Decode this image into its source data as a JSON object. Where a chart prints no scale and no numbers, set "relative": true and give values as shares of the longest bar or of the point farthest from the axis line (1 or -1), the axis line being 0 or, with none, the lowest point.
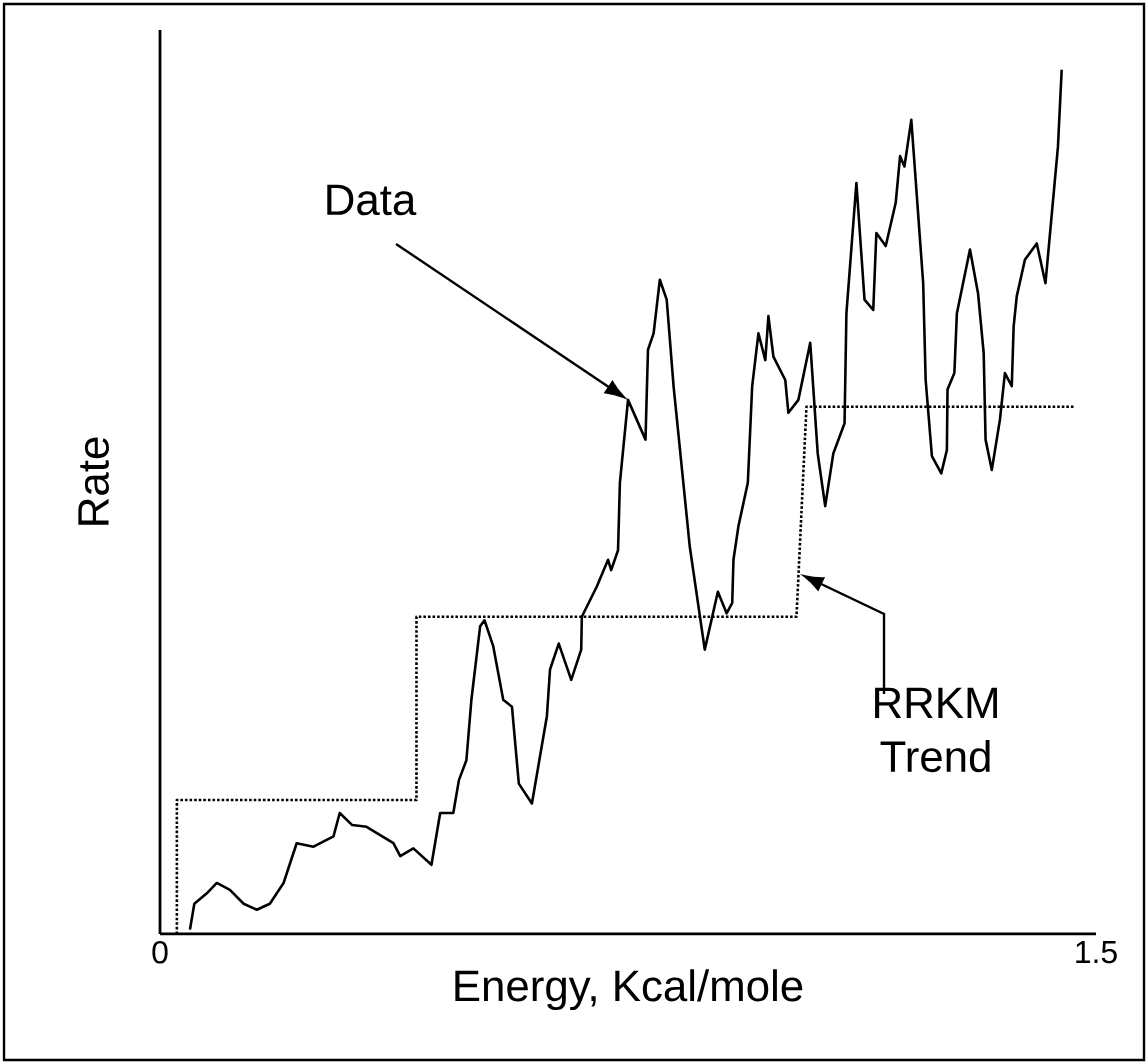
{
  "chart_data": {
    "type": "line",
    "xlabel": "Energy, Kcal/mole",
    "ylabel": "Rate",
    "relative": true,
    "xlim": [
      0,
      1.5
    ],
    "xticks": [
      0,
      1.5
    ],
    "tick_labels": "x",
    "series": [
      {
        "color": "#000000",
        "line_style": "solid",
        "x": [
          0.048,
          0.055,
          0.075,
          0.091,
          0.112,
          0.134,
          0.155,
          0.176,
          0.198,
          0.219,
          0.246,
          0.278,
          0.288,
          0.308,
          0.331,
          0.374,
          0.385,
          0.406,
          0.435,
          0.449,
          0.47,
          0.479,
          0.491,
          0.499,
          0.513,
          0.52,
          0.534,
          0.55,
          0.564,
          0.575,
          0.596,
          0.62,
          0.625,
          0.639,
          0.659,
          0.675,
          0.676,
          0.7,
          0.718,
          0.723,
          0.734,
          0.737,
          0.75,
          0.778,
          0.782,
          0.791,
          0.801,
          0.812,
          0.823,
          0.849,
          0.873,
          0.894,
          0.908,
          0.917,
          0.919,
          0.927,
          0.942,
          0.949,
          0.959,
          0.97,
          0.975,
          0.983,
          1.002,
          1.007,
          1.023,
          1.042,
          1.054,
          1.066,
          1.079,
          1.097,
          1.1,
          1.116,
          1.129,
          1.143,
          1.148,
          1.163,
          1.179,
          1.186,
          1.193,
          1.204,
          1.223,
          1.227,
          1.237,
          1.252,
          1.261,
          1.262,
          1.273,
          1.277,
          1.298,
          1.311,
          1.32,
          1.323,
          1.333,
          1.346,
          1.354,
          1.365,
          1.368,
          1.373,
          1.386,
          1.405,
          1.419,
          1.439,
          1.445
        ],
        "values": [
          0.005,
          0.035,
          0.047,
          0.059,
          0.051,
          0.035,
          0.028,
          0.035,
          0.059,
          0.105,
          0.101,
          0.113,
          0.14,
          0.126,
          0.124,
          0.105,
          0.09,
          0.099,
          0.08,
          0.14,
          0.14,
          0.178,
          0.201,
          0.271,
          0.356,
          0.363,
          0.333,
          0.271,
          0.263,
          0.174,
          0.151,
          0.252,
          0.306,
          0.336,
          0.294,
          0.329,
          0.367,
          0.402,
          0.433,
          0.421,
          0.444,
          0.522,
          0.618,
          0.572,
          0.676,
          0.695,
          0.757,
          0.734,
          0.634,
          0.448,
          0.329,
          0.396,
          0.371,
          0.383,
          0.433,
          0.472,
          0.522,
          0.634,
          0.695,
          0.664,
          0.715,
          0.668,
          0.641,
          0.603,
          0.618,
          0.684,
          0.556,
          0.495,
          0.556,
          0.591,
          0.718,
          0.869,
          0.734,
          0.722,
          0.811,
          0.796,
          0.846,
          0.9,
          0.888,
          0.942,
          0.753,
          0.641,
          0.553,
          0.533,
          0.56,
          0.63,
          0.649,
          0.718,
          0.792,
          0.741,
          0.672,
          0.572,
          0.537,
          0.595,
          0.649,
          0.634,
          0.703,
          0.738,
          0.78,
          0.799,
          0.753,
          0.911,
          1.0
        ]
      },
      {
        "color": "#000000",
        "line_style": "dotted",
        "x": [
          0.027,
          0.027,
          0.411,
          0.411,
          1.02,
          1.036,
          1.464
        ],
        "values": [
          0,
          0.155,
          0.155,
          0.367,
          0.367,
          0.61,
          0.61
        ]
      }
    ],
    "annotations": [
      "Data",
      "RRKM Trend"
    ]
  }
}
